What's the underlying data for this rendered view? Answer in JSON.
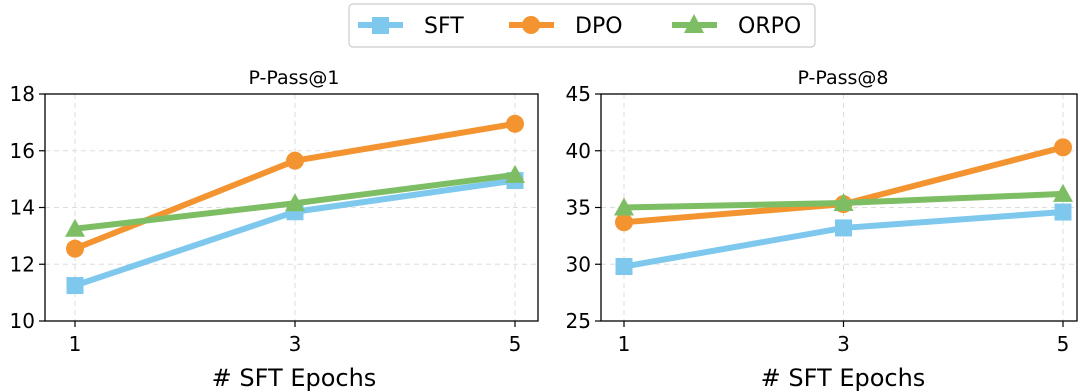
{
  "legend": {
    "entries": [
      {
        "label": "SFT",
        "marker": "square",
        "color": "#7ec8ee"
      },
      {
        "label": "DPO",
        "marker": "circle",
        "color": "#f39430"
      },
      {
        "label": "ORPO",
        "marker": "triangle",
        "color": "#7dbe64"
      }
    ],
    "placement": "top-center"
  },
  "chart_data": [
    {
      "type": "line",
      "title": "P-Pass@1",
      "xlabel": "# SFT Epochs",
      "ylabel": "",
      "x": [
        1,
        3,
        5
      ],
      "xticks": [
        "1",
        "3",
        "5"
      ],
      "yticks": [
        "10",
        "12",
        "14",
        "16",
        "18"
      ],
      "ylim": [
        10,
        18
      ],
      "grid": true,
      "series": [
        {
          "name": "SFT",
          "values": [
            11.25,
            13.85,
            14.95
          ]
        },
        {
          "name": "DPO",
          "values": [
            12.55,
            15.65,
            16.95
          ]
        },
        {
          "name": "ORPO",
          "values": [
            13.25,
            14.15,
            15.15
          ]
        }
      ]
    },
    {
      "type": "line",
      "title": "P-Pass@8",
      "xlabel": "# SFT Epochs",
      "ylabel": "",
      "x": [
        1,
        3,
        5
      ],
      "xticks": [
        "1",
        "3",
        "5"
      ],
      "yticks": [
        "25",
        "30",
        "35",
        "40",
        "45"
      ],
      "ylim": [
        25,
        45
      ],
      "grid": true,
      "series": [
        {
          "name": "SFT",
          "values": [
            29.8,
            33.2,
            34.6
          ]
        },
        {
          "name": "DPO",
          "values": [
            33.7,
            35.3,
            40.3
          ]
        },
        {
          "name": "ORPO",
          "values": [
            35.0,
            35.4,
            36.2
          ]
        }
      ]
    }
  ]
}
